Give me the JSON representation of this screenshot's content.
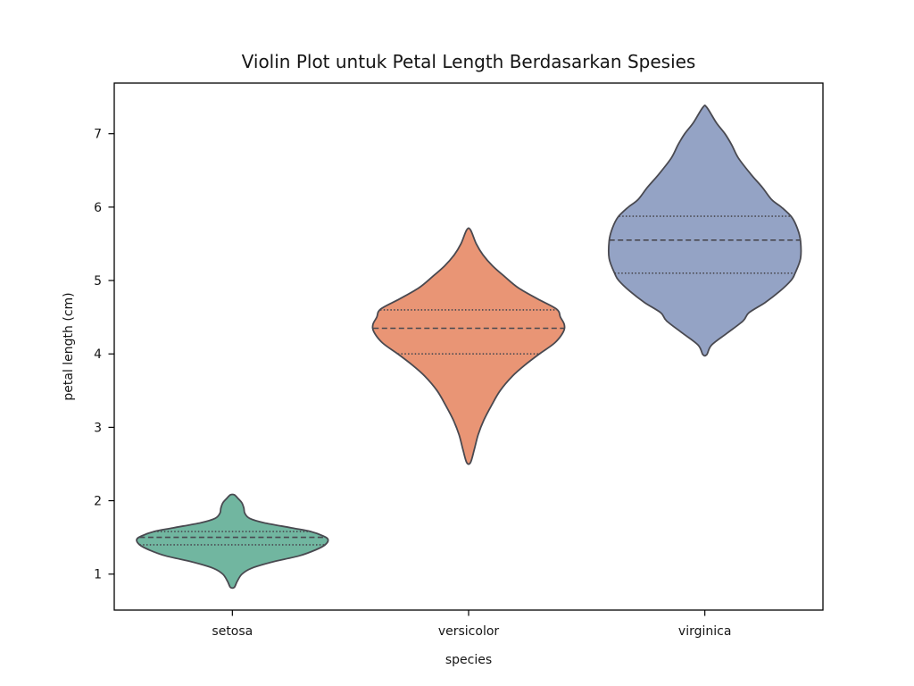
{
  "chart_data": {
    "type": "violin",
    "title": "Violin Plot untuk Petal Length Berdasarkan Spesies",
    "xlabel": "species",
    "ylabel": "petal length (cm)",
    "categories": [
      "setosa",
      "versicolor",
      "virginica"
    ],
    "yticks": [
      1,
      2,
      3,
      4,
      5,
      6,
      7
    ],
    "ylim": [
      0.51,
      7.69
    ],
    "grid": false,
    "legend": "none",
    "inner_style": "quartiles (dashed median, dotted q1/q3)",
    "edge_color": "#494950",
    "spine_color": "#000000",
    "violins": [
      {
        "category": "setosa",
        "fill_color": "#71b6a0",
        "stats": {
          "q1": 1.4,
          "median": 1.5,
          "q3": 1.58,
          "kde_min": 0.82,
          "kde_max": 2.08
        },
        "profile": [
          [
            0.82,
            0.02
          ],
          [
            0.9,
            0.05
          ],
          [
            1.0,
            0.1
          ],
          [
            1.08,
            0.2
          ],
          [
            1.16,
            0.4
          ],
          [
            1.25,
            0.7
          ],
          [
            1.33,
            0.87
          ],
          [
            1.4,
            0.97
          ],
          [
            1.47,
            1.0
          ],
          [
            1.52,
            0.95
          ],
          [
            1.58,
            0.82
          ],
          [
            1.63,
            0.62
          ],
          [
            1.7,
            0.33
          ],
          [
            1.76,
            0.18
          ],
          [
            1.83,
            0.13
          ],
          [
            1.9,
            0.12
          ],
          [
            1.97,
            0.1
          ],
          [
            2.03,
            0.06
          ],
          [
            2.08,
            0.02
          ]
        ]
      },
      {
        "category": "versicolor",
        "fill_color": "#e99575",
        "stats": {
          "q1": 4.0,
          "median": 4.35,
          "q3": 4.6,
          "kde_min": 2.52,
          "kde_max": 5.69
        },
        "profile": [
          [
            2.52,
            0.02
          ],
          [
            2.7,
            0.06
          ],
          [
            2.9,
            0.1
          ],
          [
            3.1,
            0.16
          ],
          [
            3.3,
            0.24
          ],
          [
            3.5,
            0.33
          ],
          [
            3.7,
            0.46
          ],
          [
            3.85,
            0.59
          ],
          [
            4.0,
            0.74
          ],
          [
            4.15,
            0.9
          ],
          [
            4.3,
            0.99
          ],
          [
            4.4,
            1.0
          ],
          [
            4.5,
            0.96
          ],
          [
            4.61,
            0.92
          ],
          [
            4.75,
            0.72
          ],
          [
            4.9,
            0.52
          ],
          [
            5.05,
            0.38
          ],
          [
            5.2,
            0.25
          ],
          [
            5.35,
            0.15
          ],
          [
            5.5,
            0.08
          ],
          [
            5.69,
            0.02
          ]
        ]
      },
      {
        "category": "virginica",
        "fill_color": "#94a3c5",
        "stats": {
          "q1": 5.1,
          "median": 5.55,
          "q3": 5.875,
          "kde_min": 3.99,
          "kde_max": 7.36
        },
        "profile": [
          [
            3.99,
            0.02
          ],
          [
            4.12,
            0.07
          ],
          [
            4.28,
            0.23
          ],
          [
            4.45,
            0.4
          ],
          [
            4.56,
            0.46
          ],
          [
            4.7,
            0.63
          ],
          [
            4.85,
            0.78
          ],
          [
            5.0,
            0.9
          ],
          [
            5.09,
            0.94
          ],
          [
            5.3,
            1.0
          ],
          [
            5.54,
            1.0
          ],
          [
            5.7,
            0.97
          ],
          [
            5.86,
            0.91
          ],
          [
            6.0,
            0.8
          ],
          [
            6.1,
            0.7
          ],
          [
            6.27,
            0.6
          ],
          [
            6.45,
            0.48
          ],
          [
            6.67,
            0.35
          ],
          [
            6.85,
            0.28
          ],
          [
            7.0,
            0.21
          ],
          [
            7.15,
            0.12
          ],
          [
            7.36,
            0.02
          ]
        ]
      }
    ]
  }
}
